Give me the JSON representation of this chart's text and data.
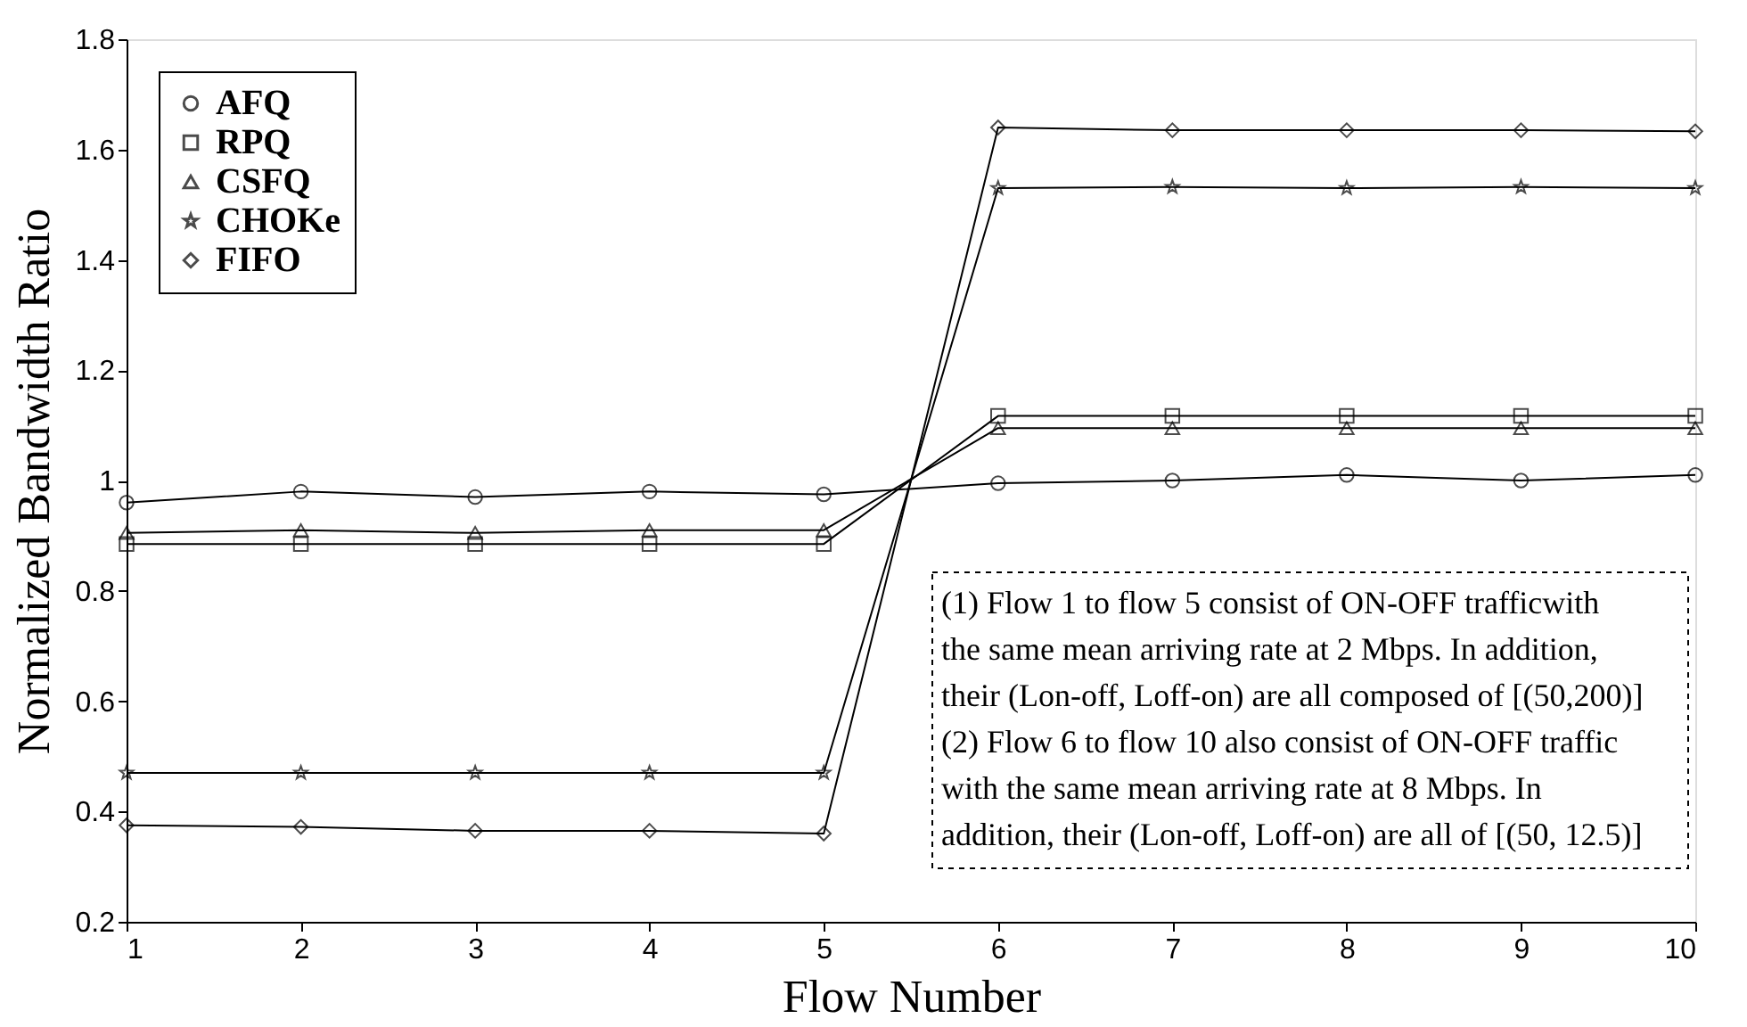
{
  "chart_data": {
    "type": "line",
    "xlabel": "Flow Number",
    "ylabel": "Normalized  Bandwidth  Ratio",
    "x": [
      1,
      2,
      3,
      4,
      5,
      6,
      7,
      8,
      9,
      10
    ],
    "series": [
      {
        "name": "AFQ",
        "color": "#000000",
        "marker": "circle",
        "values": [
          0.96,
          0.98,
          0.97,
          0.98,
          0.975,
          0.995,
          1.0,
          1.01,
          1.0,
          1.01
        ]
      },
      {
        "name": "RPQ",
        "color": "#000000",
        "marker": "square",
        "values": [
          0.885,
          0.885,
          0.885,
          0.885,
          0.885,
          1.117,
          1.117,
          1.117,
          1.117,
          1.117
        ]
      },
      {
        "name": "CSFQ",
        "color": "#000000",
        "marker": "triangle",
        "values": [
          0.905,
          0.91,
          0.905,
          0.91,
          0.91,
          1.095,
          1.095,
          1.095,
          1.095,
          1.095
        ]
      },
      {
        "name": "CHOKe",
        "color": "#000000",
        "marker": "star",
        "values": [
          0.47,
          0.47,
          0.47,
          0.47,
          0.47,
          1.53,
          1.532,
          1.53,
          1.532,
          1.53
        ]
      },
      {
        "name": "FIFO",
        "color": "#000000",
        "marker": "diamond",
        "values": [
          0.375,
          0.372,
          0.365,
          0.365,
          0.36,
          1.64,
          1.635,
          1.635,
          1.635,
          1.633
        ]
      }
    ],
    "xlim": [
      1,
      10
    ],
    "xticks": [
      1,
      2,
      3,
      4,
      5,
      6,
      7,
      8,
      9,
      10
    ],
    "ylim": [
      0.2,
      1.8
    ],
    "yticks": [
      0.2,
      0.4,
      0.6,
      0.8,
      1,
      1.2,
      1.4,
      1.6,
      1.8
    ],
    "grid": false,
    "legend": "top left",
    "line_style": "solid",
    "annotations": [
      "(1) Flow 1 to flow 5 consist of ON-OFF trafficwith\nthe same mean arriving rate at 2 Mbps. In addition,\ntheir (Lon-off, Loff-on) are all composed of [(50,200)]",
      "(2) Flow 6 to flow 10 also consist of ON-OFF traffic\nwith the same mean arriving rate at 8 Mbps. In\naddition, their (Lon-off, Loff-on) are all of [(50, 12.5)]"
    ]
  }
}
